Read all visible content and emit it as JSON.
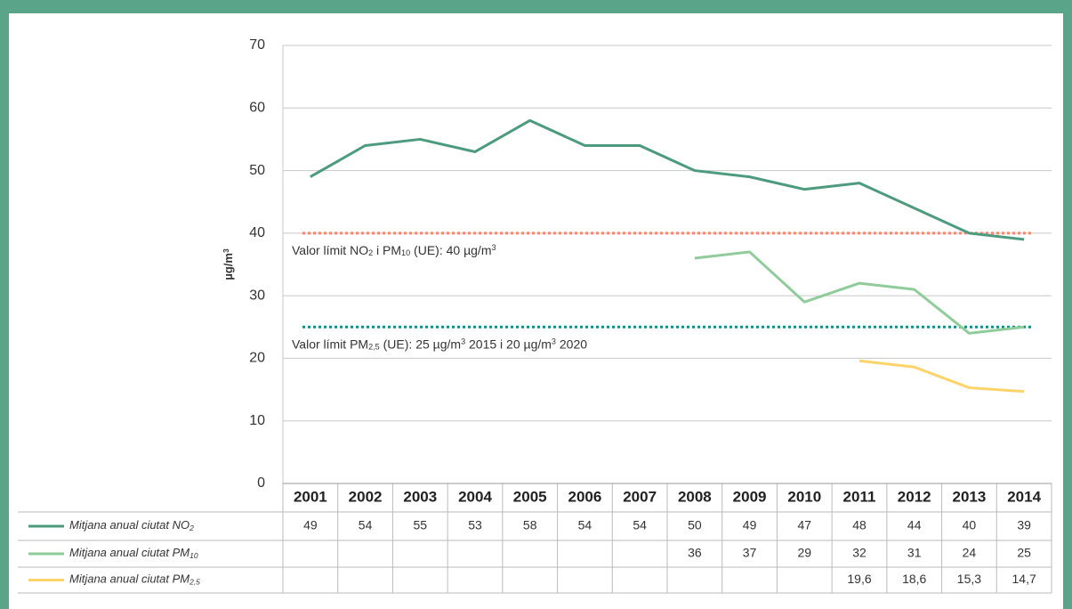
{
  "chart_data": {
    "type": "line",
    "ylabel": [
      {
        "text": "µg/m"
      },
      {
        "text": "3",
        "sup": true
      }
    ],
    "categories": [
      "2001",
      "2002",
      "2003",
      "2004",
      "2005",
      "2006",
      "2007",
      "2008",
      "2009",
      "2010",
      "2011",
      "2012",
      "2013",
      "2014"
    ],
    "series": [
      {
        "name": "Mitjana anual ciutat NO",
        "name_sub": "2",
        "color": "#4d9b7f",
        "values": [
          49,
          54,
          55,
          53,
          58,
          54,
          54,
          50,
          49,
          47,
          48,
          44,
          40,
          39
        ]
      },
      {
        "name": "Mitjana anual ciutat PM",
        "name_sub": "10",
        "color": "#8fcc99",
        "values": [
          null,
          null,
          null,
          null,
          null,
          null,
          null,
          36,
          37,
          29,
          32,
          31,
          24,
          25
        ]
      },
      {
        "name": "Mitjana anual ciutat PM",
        "name_sub": "2,5",
        "color": "#fcd46a",
        "values": [
          null,
          null,
          null,
          null,
          null,
          null,
          null,
          null,
          null,
          null,
          19.6,
          18.6,
          15.3,
          14.7
        ],
        "value_labels": [
          null,
          null,
          null,
          null,
          null,
          null,
          null,
          null,
          null,
          null,
          "19,6",
          "18,6",
          "15,3",
          "14,7"
        ]
      }
    ],
    "ylim": [
      0,
      70
    ],
    "yticks": [
      0,
      10,
      20,
      30,
      40,
      50,
      60,
      70
    ],
    "grid": true,
    "reference_lines": [
      {
        "value": 40,
        "color": "#f08a6a",
        "label": [
          {
            "text": "Valor límit NO"
          },
          {
            "text": "2",
            "sub": true
          },
          {
            "text": " i PM"
          },
          {
            "text": "10",
            "sub": true
          },
          {
            "text": " (UE): 40 µg/m"
          },
          {
            "text": "3",
            "sup": true
          }
        ]
      },
      {
        "value": 25,
        "color": "#1a8b8b",
        "label": [
          {
            "text": "Valor límit PM"
          },
          {
            "text": "2,5",
            "sub": true
          },
          {
            "text": " (UE): 25 µg/m"
          },
          {
            "text": "3",
            "sup": true
          },
          {
            "text": " 2015 i 20 µg/m"
          },
          {
            "text": "3",
            "sup": true
          },
          {
            "text": " 2020"
          }
        ]
      }
    ]
  }
}
